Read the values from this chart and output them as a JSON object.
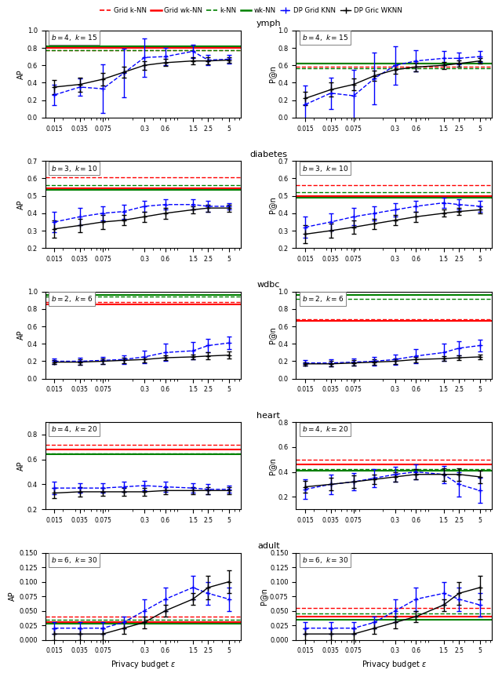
{
  "datasets": [
    "ymph",
    "diabetes",
    "wdbc",
    "heart",
    "adult"
  ],
  "params": [
    {
      "b": 4,
      "k": 15
    },
    {
      "b": 3,
      "k": 10
    },
    {
      "b": 2,
      "k": 6
    },
    {
      "b": 4,
      "k": 20
    },
    {
      "b": 6,
      "k": 30
    }
  ],
  "epsilon_values": [
    0.015,
    0.035,
    0.075,
    0.15,
    0.3,
    0.6,
    1.5,
    2.5,
    5.0
  ],
  "eps_ticks": [
    0.015,
    0.035,
    0.075,
    0.3,
    0.6,
    1.5,
    2.5,
    5.0
  ],
  "eps_tick_labels": [
    "0.015",
    "0.035",
    "0.075",
    "0.3",
    "0.6",
    "1.5",
    "2.5",
    "5"
  ],
  "ref_lines_ap": {
    "ymph": {
      "grid_knn": 0.775,
      "grid_wknn": 0.802,
      "knn": 0.772,
      "wknn": 0.82
    },
    "diabetes": {
      "grid_knn": 0.605,
      "grid_wknn": 0.545,
      "knn": 0.56,
      "wknn": 0.535
    },
    "wdbc": {
      "grid_knn": 0.88,
      "grid_wknn": 0.855,
      "knn": 0.94,
      "wknn": 0.96
    },
    "heart": {
      "grid_knn": 0.72,
      "grid_wknn": 0.68,
      "knn": 0.65,
      "wknn": 0.64
    },
    "adult": {
      "grid_knn": 0.04,
      "grid_wknn": 0.03,
      "knn": 0.035,
      "wknn": 0.028
    }
  },
  "ref_lines_pan": {
    "ymph": {
      "grid_knn": 0.58,
      "grid_wknn": 0.62,
      "knn": 0.57,
      "wknn": 0.62
    },
    "diabetes": {
      "grid_knn": 0.56,
      "grid_wknn": 0.5,
      "knn": 0.52,
      "wknn": 0.49
    },
    "wdbc": {
      "grid_knn": 0.68,
      "grid_wknn": 0.66,
      "knn": 0.92,
      "wknn": 0.96
    },
    "heart": {
      "grid_knn": 0.5,
      "grid_wknn": 0.46,
      "knn": 0.42,
      "wknn": 0.41
    },
    "adult": {
      "grid_knn": 0.055,
      "grid_wknn": 0.04,
      "knn": 0.045,
      "wknn": 0.035
    }
  },
  "dp_grid_knn_ap": {
    "ymph": [
      0.26,
      0.35,
      0.33,
      0.51,
      0.69,
      0.7,
      0.76,
      0.66,
      0.67
    ],
    "diabetes": [
      0.35,
      0.38,
      0.4,
      0.41,
      0.44,
      0.45,
      0.45,
      0.44,
      0.44
    ],
    "wdbc": [
      0.2,
      0.2,
      0.21,
      0.22,
      0.25,
      0.3,
      0.32,
      0.38,
      0.41
    ],
    "heart": [
      0.37,
      0.37,
      0.37,
      0.38,
      0.39,
      0.38,
      0.37,
      0.36,
      0.36
    ],
    "adult": [
      0.02,
      0.02,
      0.02,
      0.03,
      0.05,
      0.07,
      0.09,
      0.08,
      0.07
    ]
  },
  "dp_grid_knn_ap_err": {
    "ymph": [
      0.12,
      0.1,
      0.28,
      0.28,
      0.22,
      0.1,
      0.08,
      0.06,
      0.05
    ],
    "diabetes": [
      0.06,
      0.05,
      0.04,
      0.04,
      0.03,
      0.03,
      0.03,
      0.03,
      0.02
    ],
    "wdbc": [
      0.03,
      0.04,
      0.04,
      0.05,
      0.07,
      0.1,
      0.1,
      0.08,
      0.07
    ],
    "heart": [
      0.05,
      0.04,
      0.04,
      0.04,
      0.04,
      0.04,
      0.04,
      0.04,
      0.03
    ],
    "adult": [
      0.01,
      0.01,
      0.01,
      0.01,
      0.02,
      0.02,
      0.02,
      0.02,
      0.02
    ]
  },
  "dp_grid_wknn_ap": {
    "ymph": [
      0.35,
      0.38,
      0.44,
      0.52,
      0.6,
      0.63,
      0.65,
      0.65,
      0.66
    ],
    "diabetes": [
      0.31,
      0.33,
      0.35,
      0.36,
      0.38,
      0.4,
      0.42,
      0.43,
      0.43
    ],
    "wdbc": [
      0.19,
      0.19,
      0.2,
      0.21,
      0.22,
      0.24,
      0.25,
      0.26,
      0.27
    ],
    "heart": [
      0.33,
      0.34,
      0.34,
      0.34,
      0.34,
      0.35,
      0.35,
      0.35,
      0.35
    ],
    "adult": [
      0.01,
      0.01,
      0.01,
      0.02,
      0.03,
      0.05,
      0.07,
      0.09,
      0.1
    ]
  },
  "dp_grid_wknn_ap_err": {
    "ymph": [
      0.08,
      0.08,
      0.07,
      0.06,
      0.05,
      0.04,
      0.04,
      0.04,
      0.03
    ],
    "diabetes": [
      0.05,
      0.04,
      0.04,
      0.03,
      0.03,
      0.03,
      0.02,
      0.02,
      0.02
    ],
    "wdbc": [
      0.02,
      0.03,
      0.03,
      0.03,
      0.03,
      0.03,
      0.03,
      0.04,
      0.04
    ],
    "heart": [
      0.04,
      0.04,
      0.03,
      0.03,
      0.03,
      0.03,
      0.03,
      0.03,
      0.03
    ],
    "adult": [
      0.01,
      0.01,
      0.01,
      0.01,
      0.01,
      0.01,
      0.01,
      0.02,
      0.02
    ]
  },
  "dp_grid_knn_pan": {
    "ymph": [
      0.15,
      0.28,
      0.25,
      0.45,
      0.6,
      0.65,
      0.68,
      0.68,
      0.7
    ],
    "diabetes": [
      0.32,
      0.35,
      0.38,
      0.4,
      0.42,
      0.44,
      0.46,
      0.45,
      0.44
    ],
    "wdbc": [
      0.18,
      0.18,
      0.19,
      0.2,
      0.22,
      0.26,
      0.3,
      0.35,
      0.38
    ],
    "heart": [
      0.26,
      0.3,
      0.32,
      0.35,
      0.38,
      0.4,
      0.38,
      0.3,
      0.25
    ],
    "adult": [
      0.02,
      0.02,
      0.02,
      0.03,
      0.05,
      0.07,
      0.08,
      0.07,
      0.06
    ]
  },
  "dp_grid_knn_pan_err": {
    "ymph": [
      0.22,
      0.18,
      0.3,
      0.3,
      0.22,
      0.12,
      0.08,
      0.07,
      0.06
    ],
    "diabetes": [
      0.06,
      0.05,
      0.05,
      0.04,
      0.04,
      0.03,
      0.03,
      0.03,
      0.03
    ],
    "wdbc": [
      0.03,
      0.04,
      0.04,
      0.05,
      0.06,
      0.08,
      0.1,
      0.08,
      0.07
    ],
    "heart": [
      0.08,
      0.08,
      0.07,
      0.07,
      0.06,
      0.06,
      0.07,
      0.1,
      0.1
    ],
    "adult": [
      0.01,
      0.01,
      0.01,
      0.01,
      0.02,
      0.02,
      0.02,
      0.02,
      0.02
    ]
  },
  "dp_grid_wknn_pan": {
    "ymph": [
      0.22,
      0.32,
      0.38,
      0.48,
      0.55,
      0.58,
      0.6,
      0.62,
      0.65
    ],
    "diabetes": [
      0.28,
      0.3,
      0.32,
      0.34,
      0.36,
      0.38,
      0.4,
      0.41,
      0.42
    ],
    "wdbc": [
      0.17,
      0.17,
      0.18,
      0.19,
      0.2,
      0.22,
      0.23,
      0.24,
      0.25
    ],
    "heart": [
      0.28,
      0.3,
      0.32,
      0.34,
      0.36,
      0.38,
      0.38,
      0.38,
      0.36
    ],
    "adult": [
      0.01,
      0.01,
      0.01,
      0.02,
      0.03,
      0.04,
      0.06,
      0.08,
      0.09
    ]
  },
  "dp_grid_wknn_pan_err": {
    "ymph": [
      0.08,
      0.08,
      0.07,
      0.06,
      0.05,
      0.05,
      0.04,
      0.04,
      0.03
    ],
    "diabetes": [
      0.05,
      0.04,
      0.04,
      0.03,
      0.03,
      0.03,
      0.02,
      0.02,
      0.02
    ],
    "wdbc": [
      0.02,
      0.03,
      0.03,
      0.03,
      0.03,
      0.03,
      0.03,
      0.03,
      0.03
    ],
    "heart": [
      0.05,
      0.05,
      0.05,
      0.04,
      0.04,
      0.04,
      0.05,
      0.05,
      0.05
    ],
    "adult": [
      0.01,
      0.01,
      0.01,
      0.01,
      0.01,
      0.01,
      0.01,
      0.02,
      0.02
    ]
  },
  "ylims_ap": {
    "ymph": [
      0.0,
      1.0
    ],
    "diabetes": [
      0.2,
      0.7
    ],
    "wdbc": [
      0.0,
      1.0
    ],
    "heart": [
      0.2,
      0.9
    ],
    "adult": [
      0.0,
      0.15
    ]
  },
  "ylims_pan": {
    "ymph": [
      0.0,
      1.0
    ],
    "diabetes": [
      0.2,
      0.7
    ],
    "wdbc": [
      0.0,
      1.0
    ],
    "heart": [
      0.1,
      0.8
    ],
    "adult": [
      0.0,
      0.15
    ]
  }
}
